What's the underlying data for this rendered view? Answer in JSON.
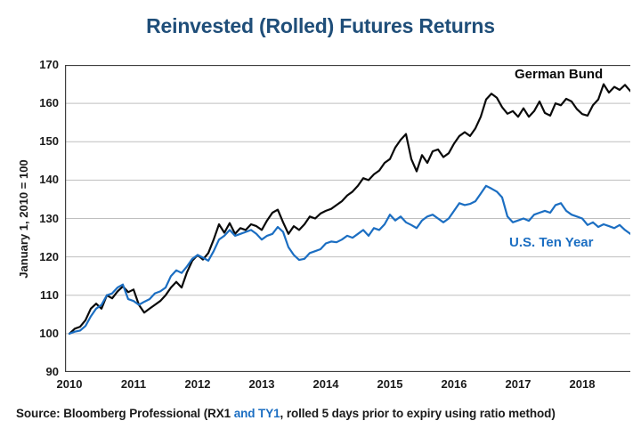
{
  "title": "Reinvested (Rolled) Futures Returns",
  "colors": {
    "title": "#1F4E79",
    "german_bund_line": "#0A0A0A",
    "us_ten_year_line": "#1B6EC2",
    "grid": "#BFBFBF",
    "axis": "#3F3F3F",
    "tick_text": "#1A1A1A"
  },
  "source_line": {
    "prefix": "Source: Bloomberg Professional (RX1 ",
    "highlight": "and TY1",
    "highlight_color": "#1B6EC2",
    "suffix": ", rolled 5 days prior to expiry using ratio method)"
  },
  "chart_data": {
    "type": "line",
    "title": "Reinvested (Rolled) Futures Returns",
    "xlabel": "",
    "ylabel": "January 1, 2010 = 100",
    "ylim": [
      90,
      170
    ],
    "y_ticks": [
      90,
      100,
      110,
      120,
      130,
      140,
      150,
      160,
      170
    ],
    "x_ticks": [
      2010,
      2011,
      2012,
      2013,
      2014,
      2015,
      2016,
      2017,
      2018
    ],
    "xlim": [
      2010.0,
      2018.75
    ],
    "x_start": 2010.0,
    "x_interval_years": 0.0833333,
    "grid": "horizontal-only",
    "legend_position": "inline-labels-on-chart",
    "series": [
      {
        "name": "German Bund",
        "color": "#0A0A0A",
        "values": [
          100.0,
          101.3,
          101.8,
          103.5,
          106.5,
          107.8,
          106.5,
          110.0,
          109.2,
          111.0,
          112.3,
          110.8,
          111.5,
          107.5,
          105.5,
          106.5,
          107.5,
          108.5,
          110.0,
          112.0,
          113.5,
          112.0,
          116.0,
          119.0,
          120.5,
          119.3,
          121.0,
          124.5,
          128.5,
          126.3,
          128.8,
          126.0,
          127.5,
          127.0,
          128.5,
          128.0,
          127.0,
          129.5,
          131.5,
          132.3,
          129.0,
          126.0,
          128.0,
          127.0,
          128.5,
          130.5,
          130.0,
          131.3,
          132.0,
          132.5,
          133.5,
          134.5,
          136.0,
          137.0,
          138.5,
          140.5,
          140.0,
          141.5,
          142.5,
          144.5,
          145.5,
          148.5,
          150.5,
          152.0,
          145.5,
          142.3,
          146.5,
          144.5,
          147.5,
          148.0,
          146.0,
          147.0,
          149.5,
          151.5,
          152.5,
          151.5,
          153.5,
          156.5,
          161.0,
          162.5,
          161.5,
          159.0,
          157.3,
          158.0,
          156.5,
          158.7,
          156.5,
          158.0,
          160.5,
          157.5,
          156.8,
          160.0,
          159.5,
          161.2,
          160.5,
          158.5,
          157.2,
          156.8,
          159.5,
          161.0,
          165.0,
          162.8,
          164.3,
          163.5,
          164.8,
          163.2
        ]
      },
      {
        "name": "U.S. Ten Year",
        "color": "#1B6EC2",
        "values": [
          100.0,
          100.5,
          100.8,
          102.0,
          104.5,
          106.5,
          107.5,
          110.0,
          110.5,
          112.0,
          112.8,
          109.0,
          108.5,
          107.5,
          108.3,
          109.0,
          110.5,
          111.0,
          112.0,
          115.0,
          116.5,
          115.8,
          117.5,
          119.5,
          120.5,
          119.8,
          119.0,
          121.5,
          124.5,
          125.5,
          127.0,
          125.5,
          126.0,
          126.5,
          127.0,
          126.0,
          124.5,
          125.5,
          126.0,
          127.8,
          126.5,
          122.5,
          120.5,
          119.2,
          119.5,
          121.0,
          121.5,
          122.0,
          123.5,
          124.0,
          123.8,
          124.5,
          125.5,
          125.0,
          126.0,
          127.0,
          125.5,
          127.5,
          127.0,
          128.5,
          131.0,
          129.5,
          130.5,
          129.0,
          128.3,
          127.5,
          129.5,
          130.5,
          131.0,
          130.0,
          129.0,
          130.0,
          132.0,
          134.0,
          133.5,
          133.8,
          134.5,
          136.5,
          138.5,
          137.8,
          137.0,
          135.5,
          130.5,
          129.0,
          129.5,
          130.0,
          129.4,
          131.0,
          131.5,
          132.0,
          131.5,
          133.5,
          134.0,
          132.0,
          131.0,
          130.5,
          130.0,
          128.3,
          129.0,
          127.8,
          128.5,
          128.0,
          127.5,
          128.3,
          127.0,
          126.0
        ]
      }
    ]
  }
}
